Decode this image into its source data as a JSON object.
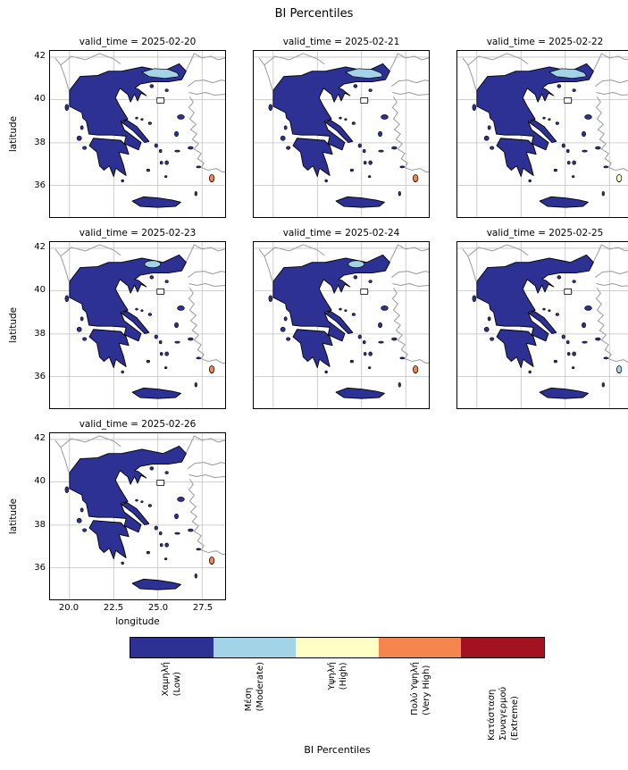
{
  "chart_data": {
    "type": "heatmap",
    "title": "BI Percentiles",
    "xlabel": "longitude",
    "ylabel": "latitude",
    "xticks": [
      "20.0",
      "22.5",
      "25.0",
      "27.5"
    ],
    "yticks": [
      "42",
      "40",
      "38",
      "36"
    ],
    "xlim": [
      18.9,
      28.8
    ],
    "ylim": [
      34.5,
      42.3
    ],
    "facet_variable": "valid_time",
    "panels": [
      {
        "label": "valid_time = 2025-02-20",
        "moderate": "large",
        "alert_color": "#f5854f"
      },
      {
        "label": "valid_time = 2025-02-21",
        "moderate": "large",
        "alert_color": "#f5854f"
      },
      {
        "label": "valid_time = 2025-02-22",
        "moderate": "large",
        "alert_color": "#feffc5"
      },
      {
        "label": "valid_time = 2025-02-23",
        "moderate": "small",
        "alert_color": "#f5854f"
      },
      {
        "label": "valid_time = 2025-02-24",
        "moderate": "small",
        "alert_color": "#f5854f"
      },
      {
        "label": "valid_time = 2025-02-25",
        "moderate": "none",
        "alert_color": "#a3d3e6"
      },
      {
        "label": "valid_time = 2025-02-26",
        "moderate": "none",
        "alert_color": "#f5854f"
      }
    ],
    "legend": {
      "axis_label": "BI Percentiles",
      "categories": [
        {
          "greek": "Χαμηλή",
          "english": "(Low)",
          "color": "#2d3193"
        },
        {
          "greek": "Μέση",
          "english": "(Moderate)",
          "color": "#a3d3e6"
        },
        {
          "greek": "Υψηλή",
          "english": "(High)",
          "color": "#feffc5"
        },
        {
          "greek": "Πολύ Υψηλή",
          "english": "(Very High)",
          "color": "#f5854f"
        },
        {
          "greek": "Κατάσταση Συναγερμού",
          "english": "(Extreme)",
          "color": "#a21220"
        }
      ]
    }
  }
}
